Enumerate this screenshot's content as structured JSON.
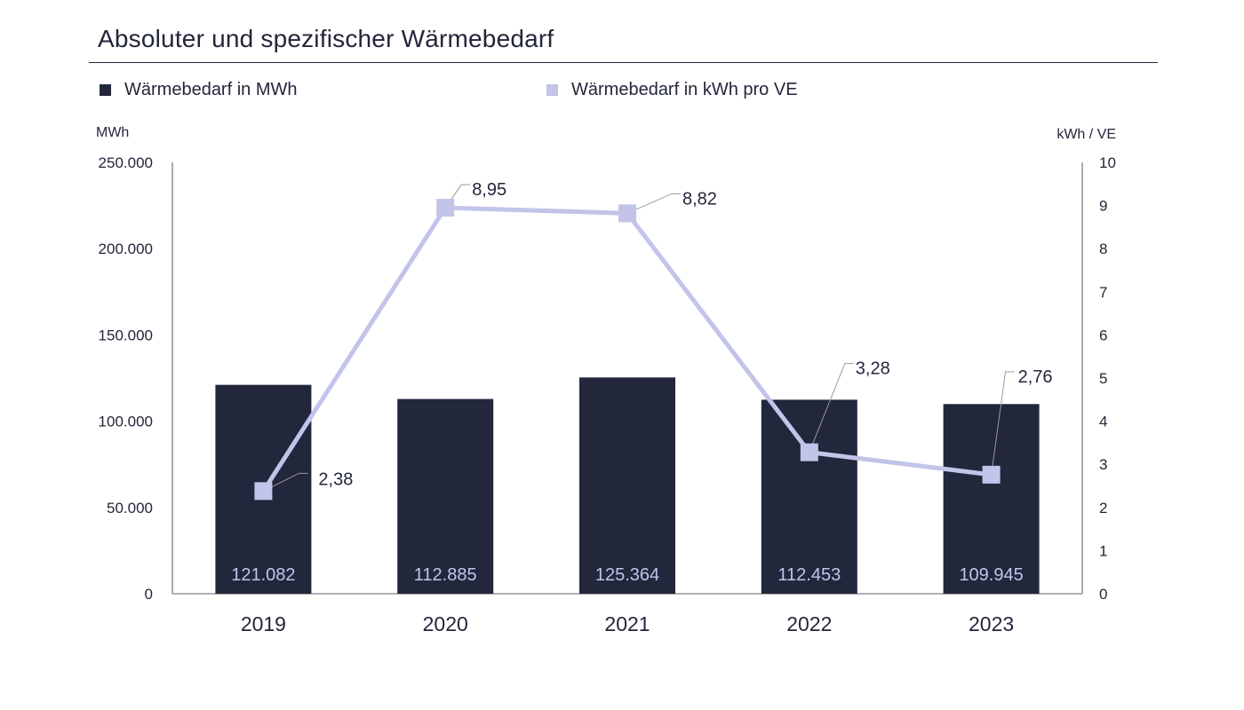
{
  "colors": {
    "bar": "#23273c",
    "line": "#c2c4ea",
    "axis": "#808080",
    "bar_label": "#c2c4ea",
    "text": "#23263a"
  },
  "chart_data": {
    "type": "bar",
    "title": "Absoluter und spezifischer Wärmebedarf",
    "categories": [
      "2019",
      "2020",
      "2021",
      "2022",
      "2023"
    ],
    "y_left_unit": "MWh",
    "y_right_unit": "kWh / VE",
    "y_left_lim": [
      0,
      250000
    ],
    "y_right_lim": [
      0,
      10
    ],
    "y_left_ticks": [
      "0",
      "50.000",
      "100.000",
      "150.000",
      "200.000",
      "250.000"
    ],
    "y_right_ticks": [
      "0",
      "1",
      "2",
      "3",
      "4",
      "5",
      "6",
      "7",
      "8",
      "9",
      "10"
    ],
    "legend_position": "top",
    "grid": false,
    "series": [
      {
        "name": "Wärmebedarf in MWh",
        "type": "bar",
        "axis": "left",
        "values": [
          121082,
          112885,
          125364,
          112453,
          109945
        ],
        "labels": [
          "121.082",
          "112.885",
          "125.364",
          "112.453",
          "109.945"
        ]
      },
      {
        "name": "Wärmebedarf in kWh pro VE",
        "type": "line",
        "axis": "right",
        "values": [
          2.38,
          8.95,
          8.82,
          3.28,
          2.76
        ],
        "labels": [
          "2,38",
          "8,95",
          "8,82",
          "3,28",
          "2,76"
        ]
      }
    ]
  }
}
